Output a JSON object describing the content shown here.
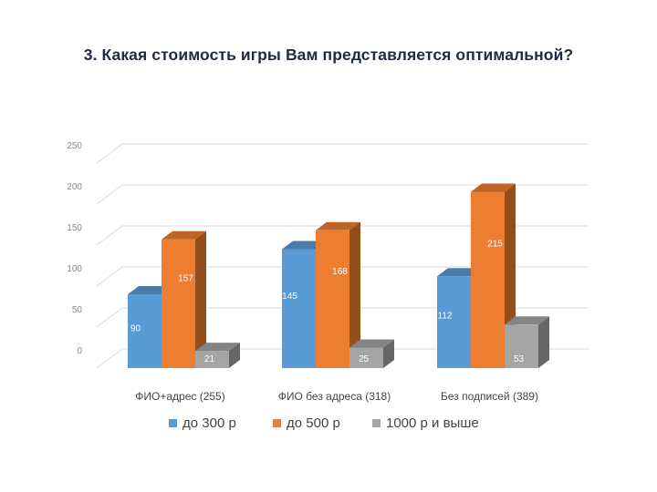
{
  "page_title": "3. Какая стоимость игры Вам представляется оптимальной?",
  "chart_data": {
    "type": "bar",
    "title": "",
    "categories": [
      "ФИО+адрес (255)",
      "ФИО без адреса (318)",
      "Без подписей (389)"
    ],
    "series": [
      {
        "name": "до 300 р",
        "values": [
          90,
          145,
          112
        ],
        "color": "#5b9bd5"
      },
      {
        "name": "до 500 р",
        "values": [
          157,
          168,
          215
        ],
        "color": "#ed7d31"
      },
      {
        "name": "1000 р и выше",
        "values": [
          21,
          25,
          53
        ],
        "color": "#a5a5a5"
      }
    ],
    "y_ticks": [
      0,
      50,
      100,
      150,
      200,
      250
    ],
    "ylim": [
      0,
      250
    ],
    "grid": true,
    "three_d": true,
    "legend_position": "bottom"
  }
}
